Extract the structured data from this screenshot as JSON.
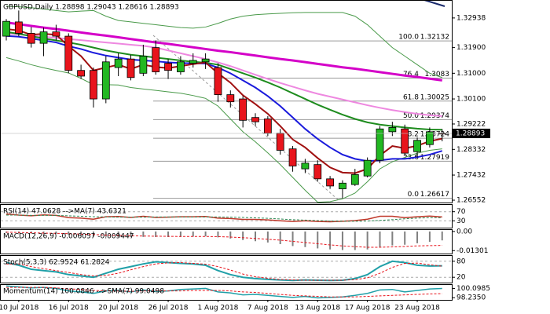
{
  "chart_data": [
    {
      "type": "candlestick",
      "title": "GBPUSD,Daily 1.28898 1.29043 1.28616 1.28893",
      "categories": [
        null,
        "10 Jul 2018",
        null,
        null,
        null,
        "16 Jul 2018",
        null,
        null,
        null,
        "20 Jul 2018",
        null,
        null,
        null,
        "26 Jul 2018",
        null,
        null,
        null,
        "1 Aug 2018",
        null,
        null,
        null,
        "7 Aug 2018",
        null,
        null,
        null,
        "13 Aug 2018",
        null,
        null,
        null,
        "17 Aug 2018",
        null,
        null,
        null,
        "23 Aug 2018",
        null,
        null
      ],
      "candles": {
        "open": [
          1.323,
          1.328,
          1.324,
          1.3205,
          1.3245,
          1.323,
          1.311,
          1.311,
          1.301,
          1.312,
          1.315,
          1.31,
          1.319,
          1.3135,
          1.3105,
          1.3135,
          1.314,
          1.312,
          1.3025,
          1.301,
          1.2945,
          1.294,
          1.289,
          1.2835,
          1.2765,
          1.278,
          1.273,
          1.2695,
          1.271,
          1.274,
          1.2795,
          1.2895,
          1.2905,
          1.2825,
          1.285,
          1.28898
        ],
        "high": [
          1.329,
          1.332,
          1.3262,
          1.326,
          1.327,
          1.324,
          1.313,
          1.312,
          1.316,
          1.317,
          1.3165,
          1.32,
          1.3215,
          1.315,
          1.316,
          1.317,
          1.317,
          1.3135,
          1.304,
          1.302,
          1.296,
          1.295,
          1.2905,
          1.2845,
          1.28,
          1.2795,
          1.274,
          1.2725,
          1.2765,
          1.2805,
          1.2915,
          1.293,
          1.292,
          1.2875,
          1.291,
          1.29043
        ],
        "low": [
          1.3215,
          1.323,
          1.319,
          1.316,
          1.3215,
          1.31,
          1.308,
          1.298,
          1.2995,
          1.309,
          1.3075,
          1.309,
          1.3095,
          1.308,
          1.3095,
          1.312,
          1.3115,
          1.3,
          1.298,
          1.291,
          1.2915,
          1.288,
          1.2815,
          1.2755,
          1.275,
          1.272,
          1.2695,
          1.2662,
          1.2705,
          1.2735,
          1.2785,
          1.288,
          1.281,
          1.2805,
          1.284,
          1.28616
        ],
        "close": [
          1.3282,
          1.324,
          1.3205,
          1.3245,
          1.323,
          1.311,
          1.309,
          1.301,
          1.314,
          1.315,
          1.3085,
          1.316,
          1.3105,
          1.311,
          1.314,
          1.3145,
          1.315,
          1.3025,
          1.3,
          1.2935,
          1.293,
          1.289,
          1.283,
          1.2775,
          1.2785,
          1.273,
          1.2705,
          1.2715,
          1.2745,
          1.2795,
          1.2905,
          1.291,
          1.282,
          1.2865,
          1.2895,
          1.28893
        ]
      },
      "up_color": "#22b822",
      "down_color": "#e8141c",
      "series": [
        {
          "color": "#d400c8",
          "width": 3,
          "values": [
            1.3278,
            1.3272,
            1.3266,
            1.326,
            1.3255,
            1.3249,
            1.3243,
            1.3237,
            1.3232,
            1.3226,
            1.322,
            1.3214,
            1.3208,
            1.3203,
            1.3197,
            1.3191,
            1.3185,
            1.3179,
            1.3174,
            1.3168,
            1.3162,
            1.3156,
            1.315,
            1.3145,
            1.3139,
            1.3133,
            1.3127,
            1.3121,
            1.3116,
            1.311,
            1.3104,
            1.3098,
            1.3092,
            1.3087,
            1.3081,
            1.3075
          ]
        },
        {
          "color": "#ee88e0",
          "width": 2,
          "values": [
            1.3239,
            1.3236,
            1.3232,
            1.3228,
            1.3224,
            1.322,
            1.3216,
            1.3212,
            1.3208,
            1.3204,
            1.32,
            1.3196,
            1.319,
            1.318,
            1.317,
            1.316,
            1.315,
            1.3138,
            1.3125,
            1.311,
            1.3095,
            1.308,
            1.3066,
            1.3053,
            1.304,
            1.3028,
            1.3018,
            1.3008,
            1.2998,
            1.2988,
            1.2979,
            1.2971,
            1.2964,
            1.2958,
            1.2953,
            1.295
          ]
        },
        {
          "color": "#4a9a4a",
          "width": 1,
          "values": [
            1.3335,
            1.3333,
            1.333,
            1.3325,
            1.332,
            1.3315,
            1.3318,
            1.332,
            1.33,
            1.3285,
            1.328,
            1.3275,
            1.327,
            1.3265,
            1.326,
            1.3258,
            1.3262,
            1.3275,
            1.329,
            1.33,
            1.3305,
            1.3308,
            1.331,
            1.3312,
            1.3313,
            1.3313,
            1.3313,
            1.3313,
            1.33,
            1.327,
            1.323,
            1.319,
            1.316,
            1.313,
            1.31,
            1.3085
          ]
        },
        {
          "color": "#4a9a4a",
          "width": 1,
          "values": [
            1.3155,
            1.3143,
            1.313,
            1.3119,
            1.311,
            1.3101,
            1.3082,
            1.306,
            1.306,
            1.3059,
            1.305,
            1.3045,
            1.304,
            1.3035,
            1.303,
            1.3022,
            1.3012,
            1.2985,
            1.294,
            1.2895,
            1.286,
            1.2821,
            1.278,
            1.2735,
            1.269,
            1.2648,
            1.265,
            1.266,
            1.268,
            1.272,
            1.2765,
            1.279,
            1.2805,
            1.282,
            1.283,
            1.2835
          ]
        },
        {
          "color": "#1e8c1e",
          "width": 2,
          "values": [
            1.3245,
            1.3238,
            1.323,
            1.3222,
            1.3215,
            1.3208,
            1.32,
            1.319,
            1.318,
            1.3172,
            1.3165,
            1.316,
            1.3155,
            1.315,
            1.3145,
            1.314,
            1.3137,
            1.313,
            1.3115,
            1.31,
            1.3085,
            1.3068,
            1.305,
            1.303,
            1.301,
            1.299,
            1.2972,
            1.2955,
            1.294,
            1.2928,
            1.292,
            1.2915,
            1.291,
            1.2906,
            1.2903,
            1.2902
          ]
        },
        {
          "color": "#1a1adc",
          "width": 2,
          "values": [
            1.3231,
            1.3228,
            1.3222,
            1.3215,
            1.3208,
            1.3195,
            1.3185,
            1.3172,
            1.3162,
            1.3155,
            1.3148,
            1.3145,
            1.3142,
            1.3138,
            1.3136,
            1.3135,
            1.3134,
            1.312,
            1.31,
            1.3075,
            1.305,
            1.302,
            1.2985,
            1.2945,
            1.2905,
            1.287,
            1.284,
            1.2815,
            1.28,
            1.2792,
            1.2795,
            1.28,
            1.28,
            1.2806,
            1.2815,
            1.2828
          ]
        },
        {
          "color": "#a01010",
          "width": 2,
          "values": [
            1.3255,
            1.325,
            1.3235,
            1.3238,
            1.3235,
            1.3195,
            1.316,
            1.311,
            1.312,
            1.313,
            1.3115,
            1.313,
            1.3122,
            1.3118,
            1.3125,
            1.3132,
            1.3138,
            1.31,
            1.3067,
            1.3023,
            1.2992,
            1.2958,
            1.2915,
            1.2868,
            1.284,
            1.2803,
            1.277,
            1.2752,
            1.275,
            1.2765,
            1.2812,
            1.2845,
            1.2837,
            1.2846,
            1.2862,
            1.2871
          ]
        }
      ],
      "ylim": [
        1.2647,
        1.3354
      ],
      "yticks": [
        1.32938,
        {
          "value": 1.319,
          "label": "1.31900"
        },
        {
          "value": 1.31,
          "label": "1.31000"
        },
        {
          "value": 1.301,
          "label": "1.30100"
        },
        1.29222,
        1.28332,
        1.27432,
        1.26552
      ],
      "fib_levels": [
        {
          "ratio": "100.0",
          "price": 1.32132
        },
        {
          "ratio": "76.4",
          "price": 1.3083
        },
        {
          "ratio": "61.8",
          "price": 1.30025
        },
        {
          "ratio": "50.0",
          "price": 1.29374
        },
        {
          "ratio": "38.2",
          "price": 1.28724
        },
        {
          "ratio": "23.6",
          "price": 1.27919
        },
        {
          "ratio": "0.0",
          "price": 1.26617
        }
      ]
    },
    {
      "type": "line",
      "title": "RSI(14) 47.0628 -->MA(7) 43.6321",
      "ylim": [
        0,
        100
      ],
      "yticks": [
        70,
        30
      ],
      "grid": "dashed",
      "series": [
        {
          "color": "#c0392b",
          "width": 1.5,
          "values": [
            60,
            55,
            52,
            56,
            54,
            44,
            42,
            37,
            48,
            49,
            45,
            50,
            45,
            46,
            48,
            48,
            49,
            42,
            40,
            36,
            36,
            34,
            30,
            27,
            30,
            27,
            26,
            28,
            31,
            37,
            50,
            50,
            44,
            48,
            51,
            47.0628
          ]
        },
        {
          "color": "#2e8b57",
          "width": 1,
          "style": "dashed",
          "values": [
            55,
            55,
            54,
            54,
            54,
            52,
            50,
            48,
            47,
            46,
            46,
            46,
            47,
            47,
            47,
            47,
            47,
            47,
            46,
            45,
            43,
            41,
            38,
            35,
            33,
            31,
            29,
            28,
            28,
            29,
            32,
            35,
            39,
            42,
            44,
            43.6321
          ]
        }
      ]
    },
    {
      "type": "line",
      "title": "MACD(12,26,9) -0.006057 -0.009447",
      "ylim": [
        -0.015,
        0.001
      ],
      "yticks": [
        {
          "value": 0,
          "label": "0.00"
        },
        -0.01301
      ],
      "series": [
        {
          "color": "#808080",
          "kind": "bar",
          "values": [
            -0.001,
            -0.0012,
            -0.0015,
            -0.0016,
            -0.0017,
            -0.0022,
            -0.0028,
            -0.0035,
            -0.0036,
            -0.0036,
            -0.0038,
            -0.0037,
            -0.0038,
            -0.0038,
            -0.0037,
            -0.0035,
            -0.0033,
            -0.004,
            -0.0048,
            -0.0058,
            -0.0066,
            -0.0075,
            -0.0086,
            -0.0099,
            -0.0106,
            -0.0115,
            -0.0122,
            -0.0126,
            -0.0126,
            -0.0122,
            -0.0108,
            -0.0095,
            -0.009,
            -0.008,
            -0.007,
            -0.006057
          ]
        },
        {
          "color": "#e8141c",
          "width": 1,
          "style": "dashed",
          "values": [
            -0.0005,
            -0.0007,
            -0.0009,
            -0.0011,
            -0.0013,
            -0.0015,
            -0.0018,
            -0.0021,
            -0.0024,
            -0.0027,
            -0.0029,
            -0.0031,
            -0.0032,
            -0.0033,
            -0.0034,
            -0.0034,
            -0.0034,
            -0.0035,
            -0.0038,
            -0.0042,
            -0.0047,
            -0.0053,
            -0.0059,
            -0.0067,
            -0.0075,
            -0.0083,
            -0.0091,
            -0.0098,
            -0.0103,
            -0.0107,
            -0.0107,
            -0.0105,
            -0.0102,
            -0.0098,
            -0.0096,
            -0.009447
          ]
        }
      ]
    },
    {
      "type": "line",
      "title": "Stoch(5,3,3) 62.9524 61.2824",
      "ylim": [
        0,
        100
      ],
      "yticks": [
        80,
        20
      ],
      "grid": "dashed",
      "series": [
        {
          "color": "#20a0a8",
          "width": 2,
          "values": [
            75,
            65,
            50,
            45,
            40,
            30,
            25,
            20,
            35,
            50,
            60,
            70,
            78,
            75,
            72,
            70,
            65,
            45,
            30,
            20,
            15,
            12,
            10,
            8,
            10,
            9,
            8,
            9,
            15,
            30,
            60,
            80,
            75,
            65,
            62,
            62.9524
          ]
        },
        {
          "color": "#e8141c",
          "width": 1,
          "style": "dashed",
          "values": [
            70,
            70,
            60,
            52,
            45,
            38,
            30,
            25,
            27,
            35,
            48,
            60,
            70,
            74,
            75,
            72,
            69,
            60,
            47,
            32,
            22,
            16,
            12,
            10,
            9,
            9,
            9,
            9,
            11,
            18,
            35,
            57,
            72,
            73,
            67,
            61.2824
          ]
        }
      ]
    },
    {
      "type": "line",
      "title": "Momentum(14) 100.0846 -->SMA(7) 99.0498",
      "ylim": [
        97.8,
        100.8
      ],
      "yticks": [
        100.0985,
        {
          "value": 98.235,
          "label": "98.2350"
        }
      ],
      "series": [
        {
          "color": "#20a0a8",
          "width": 1.5,
          "values": [
            100.6,
            100.4,
            100.2,
            100.3,
            100.1,
            99.6,
            99.4,
            99.1,
            99.6,
            99.7,
            99.4,
            99.8,
            99.5,
            99.6,
            99.9,
            100.0,
            100.1,
            99.4,
            99.2,
            98.8,
            98.9,
            98.7,
            98.5,
            98.3,
            98.5,
            98.2,
            98.3,
            98.4,
            98.7,
            99.1,
            99.8,
            99.9,
            99.4,
            99.7,
            100.0,
            100.0846
          ]
        },
        {
          "color": "#e8141c",
          "width": 1,
          "style": "dashed",
          "values": [
            100.3,
            100.3,
            100.3,
            100.3,
            100.2,
            100.0,
            99.9,
            99.7,
            99.6,
            99.6,
            99.5,
            99.6,
            99.6,
            99.6,
            99.6,
            99.7,
            99.7,
            99.7,
            99.6,
            99.4,
            99.3,
            99.1,
            98.9,
            98.7,
            98.6,
            98.5,
            98.4,
            98.4,
            98.4,
            98.5,
            98.6,
            98.7,
            98.8,
            98.9,
            99.0,
            99.0498
          ]
        }
      ]
    }
  ]
}
